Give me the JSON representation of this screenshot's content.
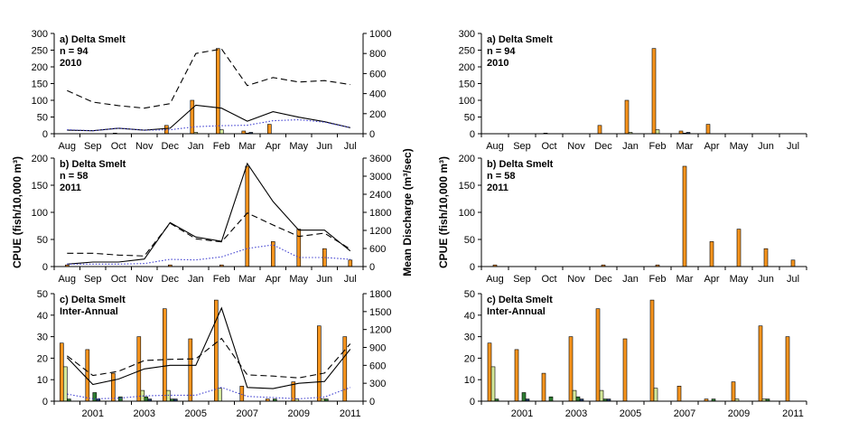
{
  "figure": {
    "ylabel_left": "CPUE (fish/10,000 m³)",
    "ylabel_right_axis": "Mean Discharge (m³/sec)",
    "ylabel_right_plots": "CPUE (fish/10,000 m³)"
  },
  "colors": {
    "orange": "#f7941d",
    "lightgreen": "#d4e89a",
    "darkgreen": "#2e7d32",
    "darkblue": "#1f3c6e",
    "red": "#c0392b",
    "dotted": "#3f3fd0"
  },
  "chart_data": [
    {
      "id": "left-a",
      "type": "bar+line",
      "panel_label": "a) Delta Smelt",
      "n_label": "n = 94",
      "year_label": "2010",
      "categories": [
        "Aug",
        "Sep",
        "Oct",
        "Nov",
        "Dec",
        "Jan",
        "Feb",
        "Mar",
        "Apr",
        "May",
        "Jun",
        "Jul"
      ],
      "ylim": [
        0,
        300
      ],
      "yticks": [
        0,
        50,
        100,
        150,
        200,
        250,
        300
      ],
      "y2lim": [
        0,
        1000
      ],
      "y2ticks": [
        0,
        200,
        400,
        600,
        800,
        1000
      ],
      "bars": [
        {
          "values": [
            0,
            0,
            2,
            0,
            25,
            100,
            255,
            8,
            28,
            0,
            0,
            0
          ],
          "color": "orange"
        },
        {
          "values": [
            0,
            0,
            0,
            0,
            0,
            4,
            12,
            2,
            0,
            0,
            0,
            0
          ],
          "color": "lightgreen"
        },
        {
          "values": [
            0,
            0,
            0,
            0,
            0,
            0,
            0,
            4,
            0,
            0,
            0,
            0
          ],
          "color": "darkblue"
        }
      ],
      "lines": [
        {
          "style": "solid",
          "values": [
            35,
            30,
            55,
            35,
            55,
            285,
            255,
            125,
            220,
            165,
            120,
            60
          ]
        },
        {
          "style": "dashed",
          "values": [
            430,
            315,
            280,
            255,
            300,
            800,
            845,
            480,
            560,
            515,
            530,
            490
          ]
        },
        {
          "style": "dotted",
          "values": [
            40,
            30,
            55,
            35,
            40,
            70,
            80,
            85,
            130,
            140,
            115,
            60
          ]
        }
      ]
    },
    {
      "id": "left-b",
      "type": "bar+line",
      "panel_label": "b) Delta Smelt",
      "n_label": "n = 58",
      "year_label": "2011",
      "categories": [
        "Aug",
        "Sep",
        "Oct",
        "Nov",
        "Dec",
        "Jan",
        "Feb",
        "Mar",
        "Apr",
        "May",
        "Jun",
        "Jul"
      ],
      "ylim": [
        0,
        200
      ],
      "yticks": [
        0,
        50,
        100,
        150,
        200
      ],
      "y2lim": [
        0,
        3600
      ],
      "y2ticks": [
        0,
        600,
        1200,
        1800,
        2400,
        3000,
        3600
      ],
      "bars": [
        {
          "values": [
            3,
            0,
            0,
            0,
            3,
            0,
            3,
            185,
            46,
            69,
            33,
            12
          ],
          "color": "orange"
        }
      ],
      "lines": [
        {
          "style": "solid",
          "values": [
            80,
            150,
            150,
            250,
            1460,
            980,
            840,
            3420,
            2160,
            1210,
            1210,
            520
          ]
        },
        {
          "style": "dashed",
          "values": [
            440,
            440,
            380,
            350,
            1440,
            920,
            820,
            1780,
            1380,
            1000,
            1110,
            580
          ]
        },
        {
          "style": "dotted",
          "values": [
            80,
            80,
            80,
            100,
            240,
            220,
            320,
            600,
            720,
            300,
            300,
            240
          ]
        }
      ]
    },
    {
      "id": "left-c",
      "type": "bar+line",
      "panel_label": "c) Delta Smelt",
      "year_label": "Inter-Annual",
      "categories": [
        "2000",
        "2001",
        "2002",
        "2003",
        "2004",
        "2005",
        "2006",
        "2007",
        "2008",
        "2009",
        "2010",
        "2011"
      ],
      "tick_labels": [
        "",
        "2001",
        "",
        "2003",
        "",
        "2005",
        "",
        "2007",
        "",
        "2009",
        "",
        "2011"
      ],
      "ylim": [
        0,
        50
      ],
      "yticks": [
        0,
        10,
        20,
        30,
        40,
        50
      ],
      "y2lim": [
        0,
        1800
      ],
      "y2ticks": [
        0,
        300,
        600,
        900,
        1200,
        1500,
        1800
      ],
      "bars": [
        {
          "values": [
            27,
            24,
            13,
            30,
            43,
            29,
            47,
            7,
            1,
            9,
            35,
            30
          ],
          "color": "orange"
        },
        {
          "values": [
            16,
            0,
            0,
            5,
            5,
            0,
            6,
            0,
            0,
            1,
            1,
            0
          ],
          "color": "lightgreen"
        },
        {
          "values": [
            1,
            4,
            2,
            2,
            1,
            0,
            0,
            0,
            1,
            0,
            1,
            0
          ],
          "color": "darkgreen"
        },
        {
          "values": [
            0,
            1,
            0,
            1,
            1,
            0,
            0,
            0,
            0,
            0,
            0,
            0
          ],
          "color": "darkblue"
        }
      ],
      "lines": [
        {
          "style": "solid",
          "values": [
            730,
            280,
            370,
            540,
            600,
            600,
            1560,
            230,
            210,
            300,
            330,
            870
          ]
        },
        {
          "style": "dashed",
          "values": [
            760,
            430,
            500,
            680,
            700,
            710,
            1050,
            440,
            420,
            390,
            470,
            960
          ]
        },
        {
          "style": "dotted",
          "values": [
            120,
            40,
            50,
            90,
            100,
            100,
            230,
            80,
            60,
            40,
            70,
            230
          ]
        }
      ]
    },
    {
      "id": "right-a",
      "type": "bar",
      "panel_label": "a) Delta Smelt",
      "n_label": "n = 94",
      "year_label": "2010",
      "categories": [
        "Aug",
        "Sep",
        "Oct",
        "Nov",
        "Dec",
        "Jan",
        "Feb",
        "Mar",
        "Apr",
        "May",
        "Jun",
        "Jul"
      ],
      "ylim": [
        0,
        300
      ],
      "yticks": [
        0,
        50,
        100,
        150,
        200,
        250,
        300
      ],
      "bars": [
        {
          "values": [
            0,
            0,
            2,
            0,
            25,
            100,
            255,
            8,
            28,
            0,
            0,
            0
          ],
          "color": "orange"
        },
        {
          "values": [
            0,
            0,
            0,
            0,
            0,
            4,
            12,
            2,
            0,
            0,
            0,
            0
          ],
          "color": "lightgreen"
        },
        {
          "values": [
            0,
            0,
            0,
            0,
            0,
            0,
            0,
            4,
            0,
            0,
            0,
            0
          ],
          "color": "darkblue"
        }
      ]
    },
    {
      "id": "right-b",
      "type": "bar",
      "panel_label": "b) Delta Smelt",
      "n_label": "n = 58",
      "year_label": "2011",
      "categories": [
        "Aug",
        "Sep",
        "Oct",
        "Nov",
        "Dec",
        "Jan",
        "Feb",
        "Mar",
        "Apr",
        "May",
        "Jun",
        "Jul"
      ],
      "ylim": [
        0,
        200
      ],
      "yticks": [
        0,
        50,
        100,
        150,
        200
      ],
      "bars": [
        {
          "values": [
            3,
            0,
            0,
            0,
            3,
            0,
            3,
            185,
            46,
            69,
            33,
            12
          ],
          "color": "orange"
        }
      ]
    },
    {
      "id": "right-c",
      "type": "bar",
      "panel_label": "c) Delta Smelt",
      "year_label": "Inter-Annual",
      "categories": [
        "2000",
        "2001",
        "2002",
        "2003",
        "2004",
        "2005",
        "2006",
        "2007",
        "2008",
        "2009",
        "2010",
        "2011"
      ],
      "tick_labels": [
        "",
        "2001",
        "",
        "2003",
        "",
        "2005",
        "",
        "2007",
        "",
        "2009",
        "",
        "2011"
      ],
      "ylim": [
        0,
        50
      ],
      "yticks": [
        0,
        10,
        20,
        30,
        40,
        50
      ],
      "bars": [
        {
          "values": [
            27,
            24,
            13,
            30,
            43,
            29,
            47,
            7,
            1,
            9,
            35,
            30
          ],
          "color": "orange"
        },
        {
          "values": [
            16,
            0,
            0,
            5,
            5,
            0,
            6,
            0,
            0,
            1,
            1,
            0
          ],
          "color": "lightgreen"
        },
        {
          "values": [
            1,
            4,
            2,
            2,
            1,
            0,
            0,
            0,
            1,
            0,
            1,
            0
          ],
          "color": "darkgreen"
        },
        {
          "values": [
            0,
            1,
            0,
            1,
            1,
            0,
            0,
            0,
            0,
            0,
            0,
            0
          ],
          "color": "darkblue"
        }
      ]
    }
  ]
}
